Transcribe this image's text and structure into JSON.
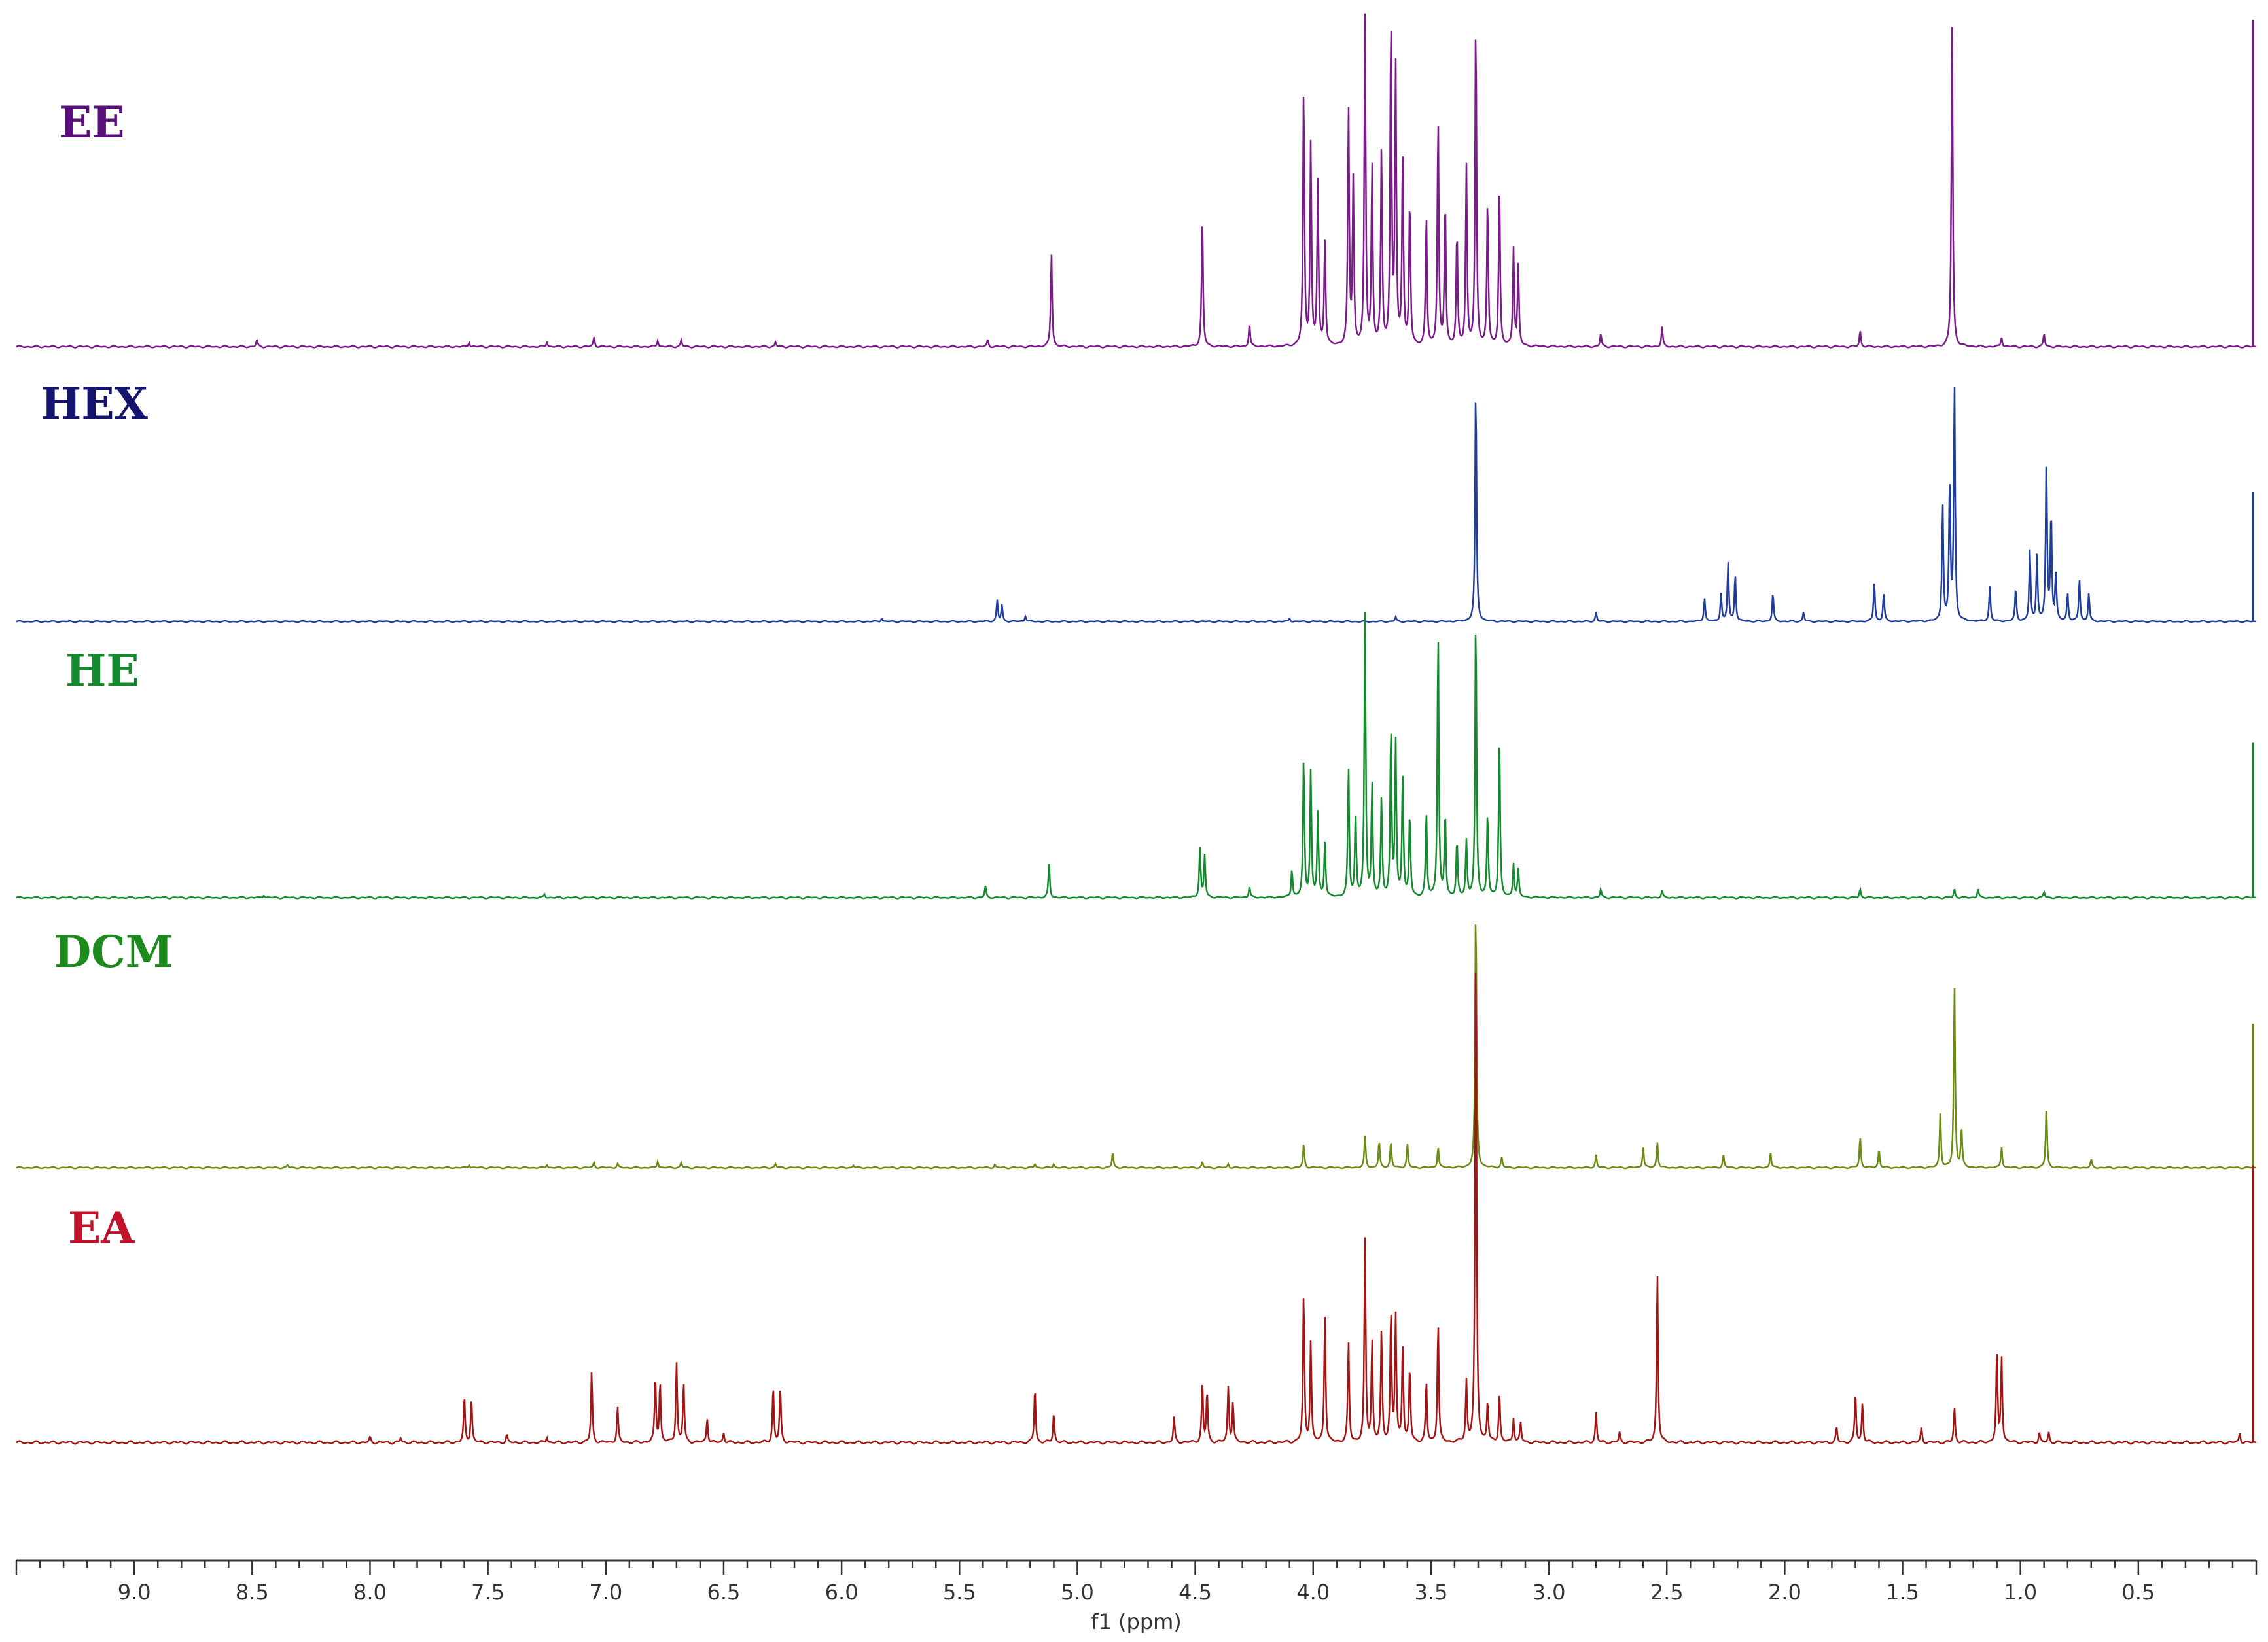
{
  "chart_data": {
    "type": "line",
    "title": "",
    "xlabel": "f1 (ppm)",
    "ylabel": "",
    "x_reversed": true,
    "xlim": [
      9.5,
      0.0
    ],
    "x_ticks": [
      9.0,
      8.5,
      8.0,
      7.5,
      7.0,
      6.5,
      6.0,
      5.5,
      5.0,
      4.5,
      4.0,
      3.5,
      3.0,
      2.5,
      2.0,
      1.5,
      1.0,
      0.5
    ],
    "x_tick_labels": [
      "9.0",
      "8.5",
      "8.0",
      "7.5",
      "7.0",
      "6.5",
      "6.0",
      "5.5",
      "5.0",
      "4.5",
      "4.0",
      "3.5",
      "3.0",
      "2.5",
      "2.0",
      "1.5",
      "1.0",
      "0.5"
    ],
    "legend_placement": "left, one label per trace",
    "grid": false,
    "series": [
      {
        "name": "EE",
        "color": "#7b1a8a",
        "label_color": "#5b0f7a",
        "peaks": [
          {
            "x": 8.48,
            "h": 0.02
          },
          {
            "x": 7.58,
            "h": 0.015
          },
          {
            "x": 7.25,
            "h": 0.015
          },
          {
            "x": 7.05,
            "h": 0.03
          },
          {
            "x": 6.78,
            "h": 0.02
          },
          {
            "x": 6.68,
            "h": 0.02
          },
          {
            "x": 6.28,
            "h": 0.015
          },
          {
            "x": 5.38,
            "h": 0.02
          },
          {
            "x": 5.11,
            "h": 0.29
          },
          {
            "x": 4.47,
            "h": 0.4
          },
          {
            "x": 4.27,
            "h": 0.07
          },
          {
            "x": 4.04,
            "h": 0.8
          },
          {
            "x": 4.01,
            "h": 0.62
          },
          {
            "x": 3.98,
            "h": 0.5
          },
          {
            "x": 3.95,
            "h": 0.33
          },
          {
            "x": 3.85,
            "h": 0.73
          },
          {
            "x": 3.83,
            "h": 0.5
          },
          {
            "x": 3.78,
            "h": 1.0
          },
          {
            "x": 3.75,
            "h": 0.55
          },
          {
            "x": 3.71,
            "h": 0.6
          },
          {
            "x": 3.67,
            "h": 1.0
          },
          {
            "x": 3.65,
            "h": 0.85
          },
          {
            "x": 3.62,
            "h": 0.6
          },
          {
            "x": 3.59,
            "h": 0.45
          },
          {
            "x": 3.52,
            "h": 0.4
          },
          {
            "x": 3.47,
            "h": 0.7
          },
          {
            "x": 3.44,
            "h": 0.45
          },
          {
            "x": 3.39,
            "h": 0.35
          },
          {
            "x": 3.35,
            "h": 0.55
          },
          {
            "x": 3.31,
            "h": 1.0
          },
          {
            "x": 3.26,
            "h": 0.45
          },
          {
            "x": 3.21,
            "h": 0.5
          },
          {
            "x": 3.15,
            "h": 0.3
          },
          {
            "x": 3.13,
            "h": 0.25
          },
          {
            "x": 2.78,
            "h": 0.04
          },
          {
            "x": 2.52,
            "h": 0.06
          },
          {
            "x": 1.68,
            "h": 0.05
          },
          {
            "x": 1.29,
            "h": 1.0
          },
          {
            "x": 1.08,
            "h": 0.03
          },
          {
            "x": 0.9,
            "h": 0.04
          }
        ]
      },
      {
        "name": "HEX",
        "color": "#1f3d9c",
        "label_color": "#14146e",
        "peaks": [
          {
            "x": 5.83,
            "h": 0.015
          },
          {
            "x": 5.34,
            "h": 0.09
          },
          {
            "x": 5.32,
            "h": 0.07
          },
          {
            "x": 5.22,
            "h": 0.025
          },
          {
            "x": 4.1,
            "h": 0.015
          },
          {
            "x": 3.65,
            "h": 0.02
          },
          {
            "x": 3.31,
            "h": 1.0
          },
          {
            "x": 2.8,
            "h": 0.04
          },
          {
            "x": 2.34,
            "h": 0.1
          },
          {
            "x": 2.27,
            "h": 0.12
          },
          {
            "x": 2.24,
            "h": 0.25
          },
          {
            "x": 2.21,
            "h": 0.2
          },
          {
            "x": 2.05,
            "h": 0.12
          },
          {
            "x": 1.92,
            "h": 0.04
          },
          {
            "x": 1.62,
            "h": 0.17
          },
          {
            "x": 1.58,
            "h": 0.12
          },
          {
            "x": 1.33,
            "h": 0.5
          },
          {
            "x": 1.3,
            "h": 0.6
          },
          {
            "x": 1.28,
            "h": 1.0
          },
          {
            "x": 1.13,
            "h": 0.15
          },
          {
            "x": 1.02,
            "h": 0.14
          },
          {
            "x": 0.96,
            "h": 0.3
          },
          {
            "x": 0.93,
            "h": 0.28
          },
          {
            "x": 0.89,
            "h": 0.68
          },
          {
            "x": 0.87,
            "h": 0.46
          },
          {
            "x": 0.85,
            "h": 0.2
          },
          {
            "x": 0.8,
            "h": 0.12
          },
          {
            "x": 0.75,
            "h": 0.18
          },
          {
            "x": 0.71,
            "h": 0.12
          }
        ]
      },
      {
        "name": "HE",
        "color": "#138a2e",
        "label_color": "#138a2e",
        "peaks": [
          {
            "x": 8.45,
            "h": 0.01
          },
          {
            "x": 7.26,
            "h": 0.012
          },
          {
            "x": 5.39,
            "h": 0.04
          },
          {
            "x": 5.12,
            "h": 0.12
          },
          {
            "x": 4.48,
            "h": 0.18
          },
          {
            "x": 4.46,
            "h": 0.15
          },
          {
            "x": 4.27,
            "h": 0.04
          },
          {
            "x": 4.09,
            "h": 0.1
          },
          {
            "x": 4.04,
            "h": 0.5
          },
          {
            "x": 4.01,
            "h": 0.45
          },
          {
            "x": 3.98,
            "h": 0.3
          },
          {
            "x": 3.95,
            "h": 0.2
          },
          {
            "x": 3.85,
            "h": 0.46
          },
          {
            "x": 3.82,
            "h": 0.3
          },
          {
            "x": 3.78,
            "h": 1.0
          },
          {
            "x": 3.75,
            "h": 0.4
          },
          {
            "x": 3.71,
            "h": 0.35
          },
          {
            "x": 3.67,
            "h": 0.6
          },
          {
            "x": 3.65,
            "h": 0.55
          },
          {
            "x": 3.62,
            "h": 0.45
          },
          {
            "x": 3.59,
            "h": 0.3
          },
          {
            "x": 3.52,
            "h": 0.3
          },
          {
            "x": 3.47,
            "h": 0.95
          },
          {
            "x": 3.44,
            "h": 0.3
          },
          {
            "x": 3.39,
            "h": 0.2
          },
          {
            "x": 3.35,
            "h": 0.2
          },
          {
            "x": 3.31,
            "h": 1.0
          },
          {
            "x": 3.26,
            "h": 0.3
          },
          {
            "x": 3.21,
            "h": 0.58
          },
          {
            "x": 3.15,
            "h": 0.12
          },
          {
            "x": 3.13,
            "h": 0.1
          },
          {
            "x": 2.78,
            "h": 0.03
          },
          {
            "x": 2.52,
            "h": 0.025
          },
          {
            "x": 1.68,
            "h": 0.03
          },
          {
            "x": 1.28,
            "h": 0.03
          },
          {
            "x": 1.18,
            "h": 0.03
          },
          {
            "x": 0.9,
            "h": 0.02
          }
        ]
      },
      {
        "name": "DCM",
        "color": "#6b8c12",
        "label_color": "#1d8a1d",
        "peaks": [
          {
            "x": 8.35,
            "h": 0.01
          },
          {
            "x": 7.58,
            "h": 0.012
          },
          {
            "x": 7.25,
            "h": 0.012
          },
          {
            "x": 7.05,
            "h": 0.02
          },
          {
            "x": 6.95,
            "h": 0.015
          },
          {
            "x": 6.78,
            "h": 0.025
          },
          {
            "x": 6.68,
            "h": 0.02
          },
          {
            "x": 6.28,
            "h": 0.015
          },
          {
            "x": 5.95,
            "h": 0.01
          },
          {
            "x": 5.35,
            "h": 0.012
          },
          {
            "x": 5.18,
            "h": 0.015
          },
          {
            "x": 5.1,
            "h": 0.015
          },
          {
            "x": 4.85,
            "h": 0.06
          },
          {
            "x": 4.47,
            "h": 0.02
          },
          {
            "x": 4.36,
            "h": 0.015
          },
          {
            "x": 4.04,
            "h": 0.09
          },
          {
            "x": 3.78,
            "h": 0.12
          },
          {
            "x": 3.72,
            "h": 0.1
          },
          {
            "x": 3.67,
            "h": 0.1
          },
          {
            "x": 3.6,
            "h": 0.09
          },
          {
            "x": 3.47,
            "h": 0.08
          },
          {
            "x": 3.31,
            "h": 1.0
          },
          {
            "x": 3.2,
            "h": 0.04
          },
          {
            "x": 2.8,
            "h": 0.05
          },
          {
            "x": 2.6,
            "h": 0.08
          },
          {
            "x": 2.54,
            "h": 0.1
          },
          {
            "x": 2.26,
            "h": 0.05
          },
          {
            "x": 2.06,
            "h": 0.06
          },
          {
            "x": 1.68,
            "h": 0.12
          },
          {
            "x": 1.6,
            "h": 0.07
          },
          {
            "x": 1.34,
            "h": 0.21
          },
          {
            "x": 1.28,
            "h": 0.7
          },
          {
            "x": 1.25,
            "h": 0.15
          },
          {
            "x": 1.08,
            "h": 0.08
          },
          {
            "x": 0.89,
            "h": 0.23
          },
          {
            "x": 0.7,
            "h": 0.03
          }
        ]
      },
      {
        "name": "EA",
        "color": "#a31515",
        "label_color": "#c2132c",
        "peaks": [
          {
            "x": 8.0,
            "h": 0.01
          },
          {
            "x": 7.87,
            "h": 0.01
          },
          {
            "x": 7.6,
            "h": 0.09
          },
          {
            "x": 7.57,
            "h": 0.09
          },
          {
            "x": 7.42,
            "h": 0.015
          },
          {
            "x": 7.25,
            "h": 0.012
          },
          {
            "x": 7.06,
            "h": 0.14
          },
          {
            "x": 6.95,
            "h": 0.07
          },
          {
            "x": 6.79,
            "h": 0.13
          },
          {
            "x": 6.77,
            "h": 0.12
          },
          {
            "x": 6.7,
            "h": 0.16
          },
          {
            "x": 6.67,
            "h": 0.12
          },
          {
            "x": 6.57,
            "h": 0.05
          },
          {
            "x": 6.5,
            "h": 0.02
          },
          {
            "x": 6.29,
            "h": 0.11
          },
          {
            "x": 6.26,
            "h": 0.11
          },
          {
            "x": 5.18,
            "h": 0.11
          },
          {
            "x": 5.1,
            "h": 0.06
          },
          {
            "x": 4.59,
            "h": 0.05
          },
          {
            "x": 4.47,
            "h": 0.12
          },
          {
            "x": 4.45,
            "h": 0.1
          },
          {
            "x": 4.36,
            "h": 0.11
          },
          {
            "x": 4.34,
            "h": 0.08
          },
          {
            "x": 4.04,
            "h": 0.3
          },
          {
            "x": 4.01,
            "h": 0.2
          },
          {
            "x": 3.95,
            "h": 0.26
          },
          {
            "x": 3.85,
            "h": 0.2
          },
          {
            "x": 3.78,
            "h": 0.4
          },
          {
            "x": 3.75,
            "h": 0.2
          },
          {
            "x": 3.71,
            "h": 0.22
          },
          {
            "x": 3.67,
            "h": 0.26
          },
          {
            "x": 3.65,
            "h": 0.25
          },
          {
            "x": 3.62,
            "h": 0.2
          },
          {
            "x": 3.59,
            "h": 0.15
          },
          {
            "x": 3.52,
            "h": 0.12
          },
          {
            "x": 3.47,
            "h": 0.24
          },
          {
            "x": 3.35,
            "h": 0.12
          },
          {
            "x": 3.31,
            "h": 1.0
          },
          {
            "x": 3.26,
            "h": 0.08
          },
          {
            "x": 3.21,
            "h": 0.1
          },
          {
            "x": 3.15,
            "h": 0.05
          },
          {
            "x": 3.12,
            "h": 0.04
          },
          {
            "x": 2.8,
            "h": 0.06
          },
          {
            "x": 2.7,
            "h": 0.02
          },
          {
            "x": 2.54,
            "h": 0.34
          },
          {
            "x": 1.7,
            "h": 0.1
          },
          {
            "x": 1.67,
            "h": 0.08
          },
          {
            "x": 1.78,
            "h": 0.03
          },
          {
            "x": 1.42,
            "h": 0.03
          },
          {
            "x": 1.28,
            "h": 0.07
          },
          {
            "x": 1.1,
            "h": 0.18
          },
          {
            "x": 1.08,
            "h": 0.17
          },
          {
            "x": 0.92,
            "h": 0.02
          },
          {
            "x": 0.88,
            "h": 0.02
          },
          {
            "x": 0.07,
            "h": 0.02
          }
        ]
      }
    ]
  }
}
